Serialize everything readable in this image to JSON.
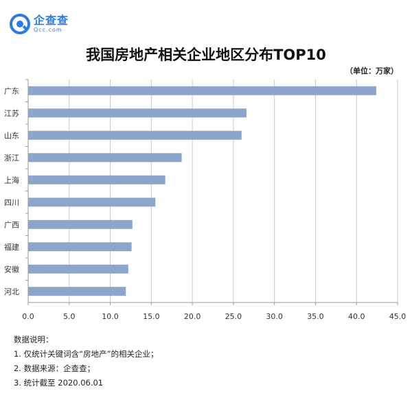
{
  "logo": {
    "name": "企查查",
    "domain": "Qcc.com"
  },
  "chart_data": {
    "type": "bar",
    "orientation": "horizontal",
    "title": "我国房地产相关企业地区分布TOP10",
    "unit": "（单位：万家）",
    "categories": [
      "广东",
      "江苏",
      "山东",
      "浙江",
      "上海",
      "四川",
      "广西",
      "福建",
      "安徽",
      "河北"
    ],
    "values": [
      42.4,
      26.6,
      26.0,
      18.7,
      16.7,
      15.5,
      12.7,
      12.6,
      12.2,
      11.9
    ],
    "xlim": [
      0,
      45
    ],
    "xticks": [
      "0.0",
      "5.0",
      "10.0",
      "15.0",
      "20.0",
      "25.0",
      "30.0",
      "35.0",
      "40.0",
      "45.0"
    ],
    "grid": "vertical",
    "bar_color": "#8ea5cb"
  },
  "notes": {
    "heading": "数据说明：",
    "items": [
      "1. 仅统计关键词含“房地产”的相关企业；",
      "2. 数据来源：企查查；",
      "3. 统计截至 2020.06.01"
    ]
  }
}
